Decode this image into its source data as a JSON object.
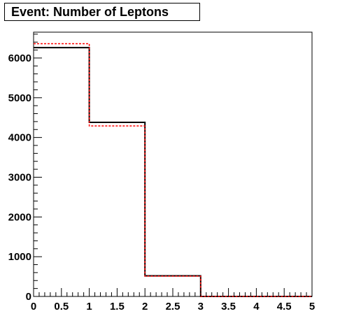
{
  "title": "Event: Number of Leptons",
  "chart_data": {
    "type": "histogram",
    "title": "Event: Number of Leptons",
    "xlabel": "",
    "ylabel": "",
    "xlim": [
      0,
      5
    ],
    "ylim": [
      0,
      6650
    ],
    "grid": false,
    "x_ticks": [
      0,
      0.5,
      1,
      1.5,
      2,
      2.5,
      3,
      3.5,
      4,
      4.5,
      5
    ],
    "x_tick_labels": [
      "0",
      "0.5",
      "1",
      "1.5",
      "2",
      "2.5",
      "3",
      "3.5",
      "4",
      "4.5",
      "5"
    ],
    "y_ticks": [
      0,
      1000,
      2000,
      3000,
      4000,
      5000,
      6000
    ],
    "y_tick_labels": [
      "0",
      "1000",
      "2000",
      "3000",
      "4000",
      "5000",
      "6000"
    ],
    "bin_edges": [
      0,
      1,
      2,
      3,
      4,
      5
    ],
    "series": [
      {
        "values": [
          6260,
          4380,
          520,
          0,
          0
        ],
        "color": "#000000",
        "style": "solid"
      },
      {
        "values": [
          6360,
          4290,
          510,
          0,
          0
        ],
        "color": "#ff0000",
        "style": "dashed"
      }
    ]
  }
}
